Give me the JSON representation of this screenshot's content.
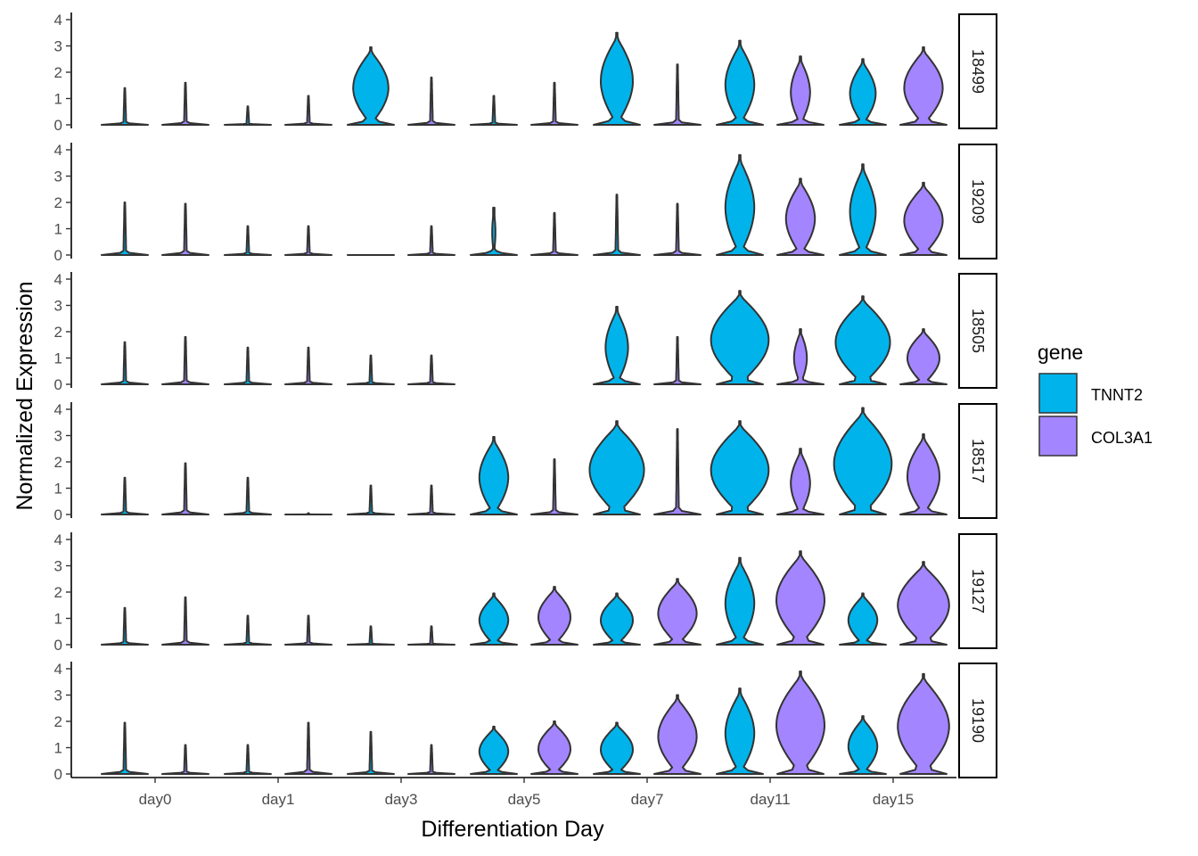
{
  "chart_data": {
    "type": "violin",
    "title": "",
    "xlabel": "Differentiation Day",
    "ylabel": "Normalized Expression",
    "ylim": [
      0,
      4
    ],
    "yticks": [
      "0",
      "1",
      "2",
      "3",
      "4"
    ],
    "categories": [
      "day0",
      "day1",
      "day3",
      "day5",
      "day7",
      "day11",
      "day15"
    ],
    "legend": {
      "title": "gene",
      "position": "right",
      "items": [
        {
          "name": "TNNT2",
          "color": "#00B4EB"
        },
        {
          "name": "COL3A1",
          "color": "#A385FF"
        }
      ]
    },
    "facets": [
      {
        "label": "18499",
        "max": {
          "TNNT2": [
            1.4,
            0.7,
            2.95,
            1.1,
            3.5,
            3.2,
            2.5
          ],
          "COL3A1": [
            1.6,
            1.1,
            1.8,
            1.6,
            2.3,
            2.6,
            2.95
          ]
        },
        "width": {
          "TNNT2": [
            0.0,
            0.0,
            0.55,
            0.0,
            0.5,
            0.45,
            0.4
          ],
          "COL3A1": [
            0.0,
            0.0,
            0.0,
            0.0,
            0.0,
            0.3,
            0.6
          ]
        }
      },
      {
        "label": "19209",
        "max": {
          "TNNT2": [
            2.0,
            1.1,
            0.0,
            1.8,
            2.3,
            3.8,
            3.45
          ],
          "COL3A1": [
            1.95,
            1.1,
            1.1,
            1.6,
            1.95,
            2.9,
            2.75
          ]
        },
        "width": {
          "TNNT2": [
            0.0,
            0.0,
            0.0,
            0.05,
            0.0,
            0.45,
            0.4
          ],
          "COL3A1": [
            0.0,
            0.0,
            0.0,
            0.0,
            0.0,
            0.45,
            0.6
          ]
        }
      },
      {
        "label": "18505",
        "max": {
          "TNNT2": [
            1.6,
            1.4,
            1.1,
            null,
            2.95,
            3.55,
            3.35
          ],
          "COL3A1": [
            1.8,
            1.4,
            1.1,
            null,
            1.8,
            2.1,
            2.1
          ]
        },
        "width": {
          "TNNT2": [
            0.0,
            0.0,
            0.0,
            0.0,
            0.35,
            0.9,
            0.85
          ],
          "COL3A1": [
            0.0,
            0.0,
            0.0,
            0.0,
            0.0,
            0.2,
            0.5
          ]
        }
      },
      {
        "label": "18517",
        "max": {
          "TNNT2": [
            1.4,
            1.4,
            1.1,
            2.95,
            3.55,
            3.55,
            4.05
          ],
          "COL3A1": [
            1.95,
            0.05,
            1.1,
            2.1,
            3.25,
            2.5,
            3.05
          ]
        },
        "width": {
          "TNNT2": [
            0.0,
            0.0,
            0.0,
            0.45,
            0.85,
            0.9,
            0.9
          ],
          "COL3A1": [
            0.0,
            0.0,
            0.0,
            0.0,
            0.0,
            0.3,
            0.5
          ]
        }
      },
      {
        "label": "19127",
        "max": {
          "TNNT2": [
            1.4,
            1.1,
            0.7,
            1.95,
            1.95,
            3.3,
            1.95
          ],
          "COL3A1": [
            1.8,
            1.1,
            0.7,
            2.2,
            2.5,
            3.55,
            3.15
          ]
        },
        "width": {
          "TNNT2": [
            0.0,
            0.0,
            0.0,
            0.45,
            0.5,
            0.45,
            0.45
          ],
          "COL3A1": [
            0.0,
            0.0,
            0.0,
            0.5,
            0.6,
            0.75,
            0.8
          ]
        }
      },
      {
        "label": "19190",
        "max": {
          "TNNT2": [
            1.95,
            1.1,
            1.6,
            1.8,
            1.95,
            3.25,
            2.2
          ],
          "COL3A1": [
            1.1,
            1.95,
            1.1,
            2.0,
            3.0,
            3.9,
            3.8
          ]
        },
        "width": {
          "TNNT2": [
            0.0,
            0.0,
            0.0,
            0.45,
            0.5,
            0.45,
            0.45
          ],
          "COL3A1": [
            0.0,
            0.0,
            0.0,
            0.5,
            0.6,
            0.75,
            0.8
          ]
        }
      }
    ]
  }
}
